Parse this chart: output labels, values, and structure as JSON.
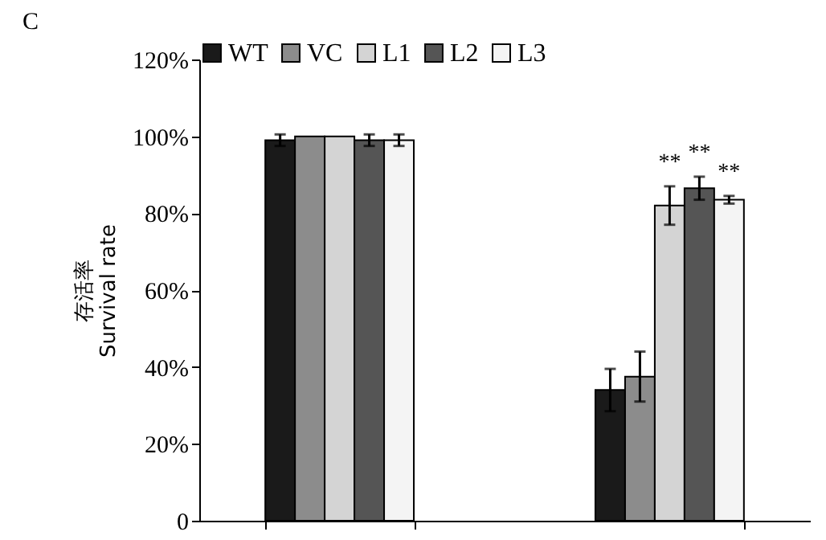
{
  "chart_data": {
    "type": "bar",
    "title": "C",
    "ylabel": "存活率\nSurvival rate",
    "categories": [
      null,
      null
    ],
    "series": [
      {
        "name": "WT",
        "color": "#1a1a1a",
        "values": [
          99,
          34
        ],
        "errors": [
          1.5,
          5.5
        ]
      },
      {
        "name": "VC",
        "color": "#8c8c8c",
        "values": [
          100,
          37.5
        ],
        "errors": [
          null,
          6.5
        ]
      },
      {
        "name": "L1",
        "color": "#d4d4d4",
        "values": [
          100,
          82
        ],
        "errors": [
          null,
          5
        ],
        "value_labels": [
          null,
          "**"
        ]
      },
      {
        "name": "L2",
        "color": "#555555",
        "values": [
          99,
          86.5
        ],
        "errors": [
          1.5,
          3
        ],
        "value_labels": [
          null,
          "**"
        ]
      },
      {
        "name": "L3",
        "color": "#f4f4f4",
        "values": [
          99,
          83.5
        ],
        "errors": [
          1.5,
          1
        ],
        "value_labels": [
          null,
          "**"
        ]
      }
    ],
    "ylim": [
      0,
      120
    ],
    "yticks": [
      {
        "value": 0,
        "label": "0"
      },
      {
        "value": 20,
        "label": "20%"
      },
      {
        "value": 40,
        "label": "40%"
      },
      {
        "value": 60,
        "label": "60%"
      },
      {
        "value": 80,
        "label": "80%"
      },
      {
        "value": 100,
        "label": "100%"
      },
      {
        "value": 120,
        "label": "120%"
      }
    ],
    "grid": false,
    "legend": "top",
    "tick_labels": "y"
  }
}
